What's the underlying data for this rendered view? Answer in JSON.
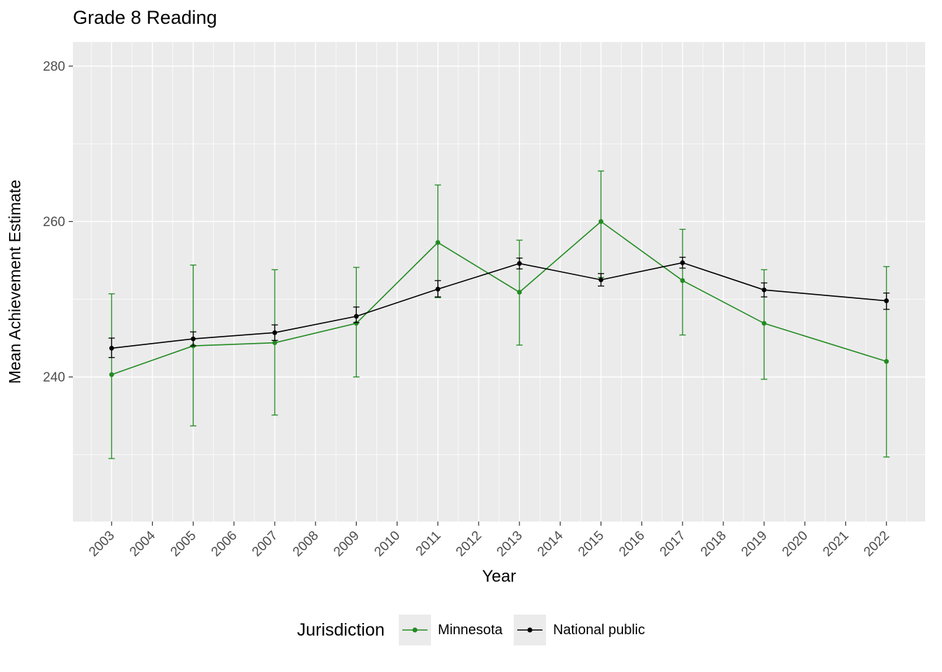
{
  "title": "Grade 8 Reading",
  "axes": {
    "x_label": "Year",
    "y_label": "Mean Achievement Estimate"
  },
  "legend": {
    "title": "Jurisdiction"
  },
  "chart_data": {
    "type": "line",
    "title": "Grade 8 Reading",
    "xlabel": "Year",
    "ylabel": "Mean Achievement Estimate",
    "legend_title": "Jurisdiction",
    "legend_position": "bottom",
    "grid": true,
    "xlim": [
      2002.05,
      2022.95
    ],
    "ylim": [
      221.4,
      283.1
    ],
    "xticks": [
      2003,
      2004,
      2005,
      2006,
      2007,
      2008,
      2009,
      2010,
      2011,
      2012,
      2013,
      2014,
      2015,
      2016,
      2017,
      2018,
      2019,
      2020,
      2021,
      2022
    ],
    "yticks": [
      240,
      260,
      280
    ],
    "yminor": [
      230,
      250,
      270
    ],
    "years": [
      2003,
      2005,
      2007,
      2009,
      2011,
      2013,
      2015,
      2017,
      2019,
      2022
    ],
    "series": [
      {
        "name": "Minnesota",
        "color": "#228B22",
        "means": [
          240.3,
          244.0,
          244.4,
          246.9,
          257.3,
          250.9,
          260.0,
          252.4,
          246.9,
          242.0
        ],
        "lower": [
          229.5,
          233.7,
          235.1,
          240.0,
          250.2,
          244.1,
          252.8,
          245.4,
          239.7,
          229.7
        ],
        "upper": [
          250.7,
          254.4,
          253.8,
          254.1,
          264.7,
          257.6,
          266.5,
          259.0,
          253.8,
          254.2
        ]
      },
      {
        "name": "National public",
        "color": "#000000",
        "means": [
          243.7,
          244.9,
          245.7,
          247.8,
          251.3,
          254.6,
          252.5,
          254.7,
          251.2,
          249.8
        ],
        "lower": [
          242.5,
          244.0,
          244.7,
          247.0,
          250.3,
          253.9,
          251.7,
          254.0,
          250.3,
          248.7
        ],
        "upper": [
          245.0,
          245.8,
          246.7,
          249.0,
          252.4,
          255.3,
          253.3,
          255.4,
          252.1,
          250.8
        ]
      }
    ],
    "colors": {
      "panel_bg": "#EBEBEB",
      "grid_major": "#FFFFFF",
      "grid_minor": "#FFFFFF",
      "tick_label": "#4D4D4D",
      "tick_mark": "#333333"
    }
  }
}
